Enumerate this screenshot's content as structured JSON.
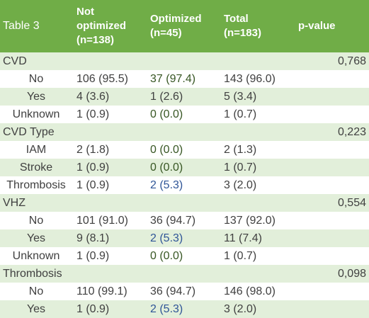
{
  "header": {
    "title": "Table 3",
    "col1_line1": "Not",
    "col1_line2": "optimized",
    "col1_line3": "(n=138)",
    "col2_line1": "Optimized",
    "col2_line2": "(n=45)",
    "col3_line1": "Total",
    "col3_line2": "(n=183)",
    "col4": "p-value"
  },
  "rows": [
    {
      "label": "CVD",
      "pvalue": "0,768"
    },
    {
      "label": "No",
      "c1": "106 (95.5)",
      "c2": "37 (97.4)",
      "c3": "143 (96.0)"
    },
    {
      "label": "Yes",
      "c1": "4 (3.6)",
      "c2": "1 (2.6)",
      "c3": "5 (3.4)"
    },
    {
      "label": "Unknown",
      "c1": "1 (0.9)",
      "c2": "0 (0.0)",
      "c3": "1 (0.7)"
    },
    {
      "label": "CVD Type",
      "pvalue": "0,223"
    },
    {
      "label": "IAM",
      "c1": "2 (1.8)",
      "c2": "0 (0.0)",
      "c3": "2 (1.3)"
    },
    {
      "label": "Stroke",
      "c1": "1 (0.9)",
      "c2": "0 (0.0)",
      "c3": "1 (0.7)"
    },
    {
      "label": "Thrombosis",
      "c1": "1 (0.9)",
      "c2": "2 (5.3)",
      "c3": "3 (2.0)"
    },
    {
      "label": "VHZ",
      "pvalue": "0,554"
    },
    {
      "label": "No",
      "c1": "101 (91.0)",
      "c2": "36 (94.7)",
      "c3": "137 (92.0)"
    },
    {
      "label": "Yes",
      "c1": "9 (8.1)",
      "c2": "2 (5.3)",
      "c3": "11 (7.4)"
    },
    {
      "label": "Unknown",
      "c1": "1 (0.9)",
      "c2": "0 (0.0)",
      "c3": "1 (0.7)"
    },
    {
      "label": "Thrombosis",
      "pvalue": "0,098"
    },
    {
      "label": "No",
      "c1": "110 (99.1)",
      "c2": "36 (94.7)",
      "c3": "146 (98.0)"
    },
    {
      "label": "Yes",
      "c1": "1 (0.9)",
      "c2": "2 (5.3)",
      "c3": "3 (2.0)"
    }
  ],
  "colors": {
    "header_bg": "#70ad47",
    "stripe_bg": "#e2efda",
    "text": "#404040",
    "optimized_zero_text": "#375623",
    "optimized_nonzero_text": "#2f5597"
  }
}
